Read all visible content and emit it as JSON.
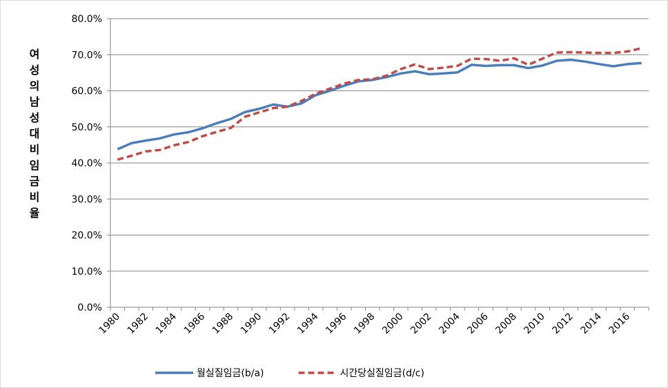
{
  "chart_data": {
    "type": "line",
    "y_label": "여성의남성대비임금비율",
    "categories": [
      "1980",
      null,
      "1982",
      null,
      "1984",
      null,
      "1986",
      null,
      "1988",
      null,
      "1990",
      null,
      "1992",
      null,
      "1994",
      null,
      "1996",
      null,
      "1998",
      null,
      "2000",
      null,
      "2002",
      null,
      "2004",
      null,
      "2006",
      null,
      "2008",
      null,
      "2010",
      null,
      "2012",
      null,
      "2014",
      null,
      "2016",
      null
    ],
    "series": [
      {
        "name": "월실질임금(b/a)",
        "color": "#4a7ebb",
        "dash": false,
        "values": [
          43.8,
          45.5,
          46.2,
          46.8,
          47.9,
          48.5,
          49.6,
          51.0,
          52.2,
          54.1,
          55.0,
          56.2,
          55.6,
          56.5,
          58.8,
          60.0,
          61.4,
          62.6,
          63.0,
          63.8,
          64.8,
          65.4,
          64.6,
          64.8,
          65.1,
          67.2,
          66.9,
          67.1,
          67.1,
          66.3,
          67.0,
          68.3,
          68.6,
          68.1,
          67.4,
          66.8,
          67.4,
          67.7
        ]
      },
      {
        "name": "시간당실질임금(d/c)",
        "color": "#be4b48",
        "dash": true,
        "values": [
          40.9,
          42.0,
          43.2,
          43.6,
          44.9,
          45.8,
          47.4,
          48.6,
          49.7,
          52.8,
          54.0,
          55.2,
          55.6,
          57.2,
          59.2,
          60.6,
          62.0,
          63.0,
          63.2,
          64.2,
          66.0,
          67.3,
          66.0,
          66.4,
          66.9,
          68.9,
          68.8,
          68.3,
          69.0,
          67.2,
          68.9,
          70.6,
          70.7,
          70.6,
          70.5,
          70.5,
          70.9,
          71.8
        ]
      }
    ],
    "ylim": [
      0,
      80
    ],
    "yticks": [
      {
        "value": 0,
        "label": "0.0%"
      },
      {
        "value": 10,
        "label": "10.0%"
      },
      {
        "value": 20,
        "label": "20.0%"
      },
      {
        "value": 30,
        "label": "30.0%"
      },
      {
        "value": 40,
        "label": "40.0%"
      },
      {
        "value": 50,
        "label": "50.0%"
      },
      {
        "value": 60,
        "label": "60.0%"
      },
      {
        "value": 70,
        "label": "70.0%"
      },
      {
        "value": 80,
        "label": "80.0%"
      }
    ],
    "grid": true
  }
}
